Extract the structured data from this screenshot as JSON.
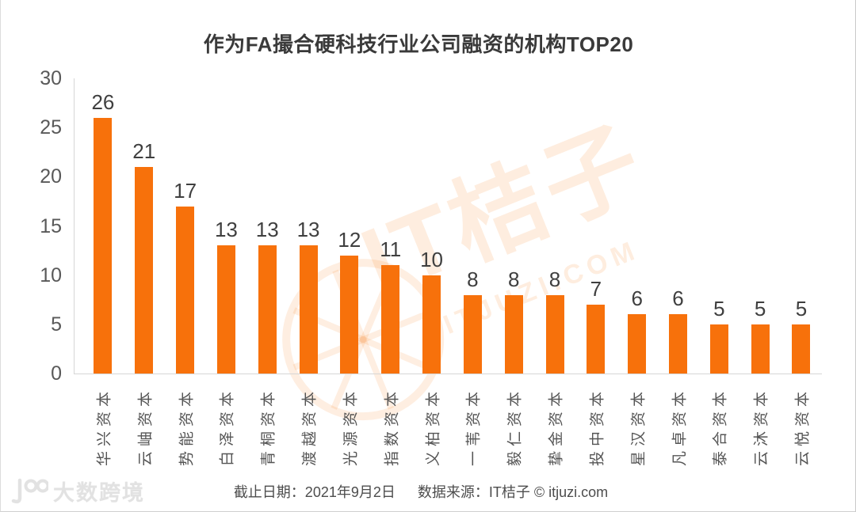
{
  "title": "作为FA撮合硬科技行业公司融资的机构TOP20",
  "chart_data": {
    "type": "bar",
    "title": "作为FA撮合硬科技行业公司融资的机构TOP20",
    "categories": [
      "华兴资本",
      "云岫资本",
      "势能资本",
      "白泽资本",
      "青桐资本",
      "渡越资本",
      "光源资本",
      "指数资本",
      "义柏资本",
      "一苇资本",
      "毅仁资本",
      "挚金资本",
      "投中资本",
      "星汉资本",
      "凡卓资本",
      "泰合资本",
      "云沐资本",
      "云悦资本"
    ],
    "values": [
      26,
      21,
      17,
      13,
      13,
      13,
      12,
      11,
      10,
      8,
      8,
      8,
      7,
      6,
      6,
      5,
      5,
      5
    ],
    "xlabel": "",
    "ylabel": "",
    "ylim": [
      0,
      30
    ],
    "yticks": [
      0,
      5,
      10,
      15,
      20,
      25,
      30
    ],
    "grid": false,
    "legend": "none",
    "value_labels_shown": true,
    "bar_color": "#F7710B"
  },
  "footer": {
    "date_label": "截止日期：2021年9月2日",
    "source_label": "数据来源：IT桔子 © itjuzi.com"
  },
  "watermark": {
    "brand": "IT桔子",
    "domain": "ITJUZI.COM",
    "color": "#F7710B"
  },
  "corner_watermark": {
    "text": "大数跨境",
    "logo": "100"
  }
}
